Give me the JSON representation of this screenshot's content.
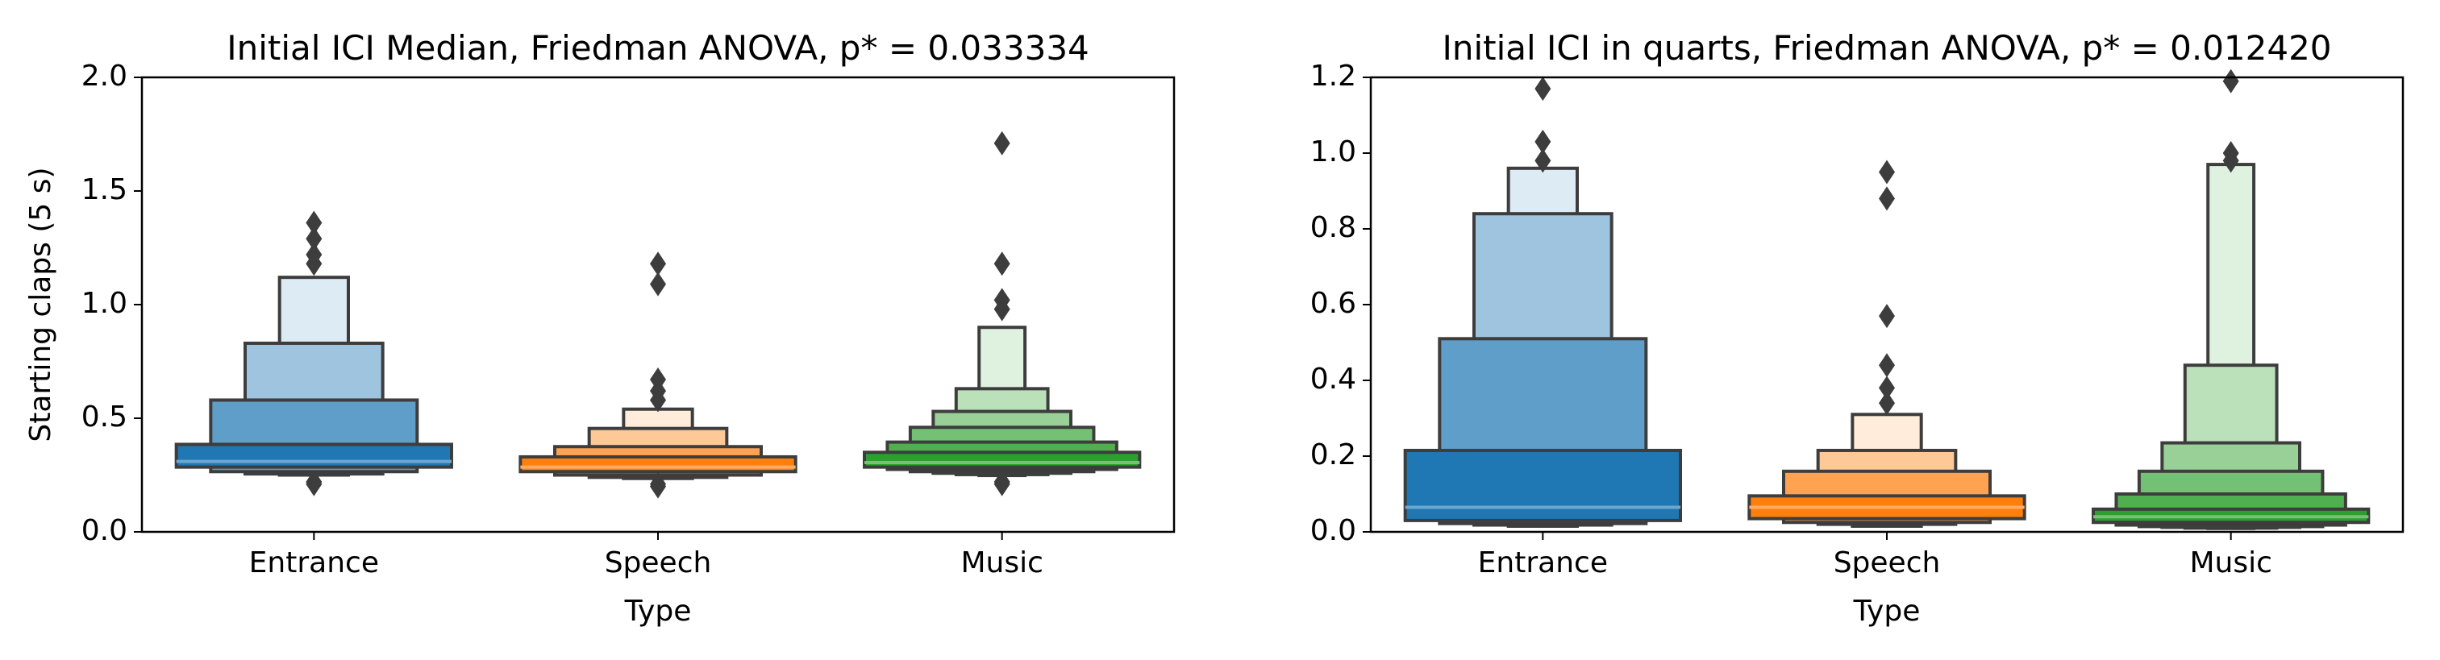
{
  "colors": {
    "entrance": "#1f77b4",
    "speech": "#ff7f0e",
    "music": "#2ca02c",
    "outline": "#3d3d3d"
  },
  "chart_data": [
    {
      "type": "boxen",
      "title": "Initial ICI Median, Friedman ANOVA, p* = 0.033334",
      "xlabel": "Type",
      "ylabel": "Starting claps (5 s)",
      "ylim": [
        0,
        2.0
      ],
      "yticks": [
        "0.0",
        "0.5",
        "1.0",
        "1.5",
        "2.0"
      ],
      "categories": [
        "Entrance",
        "Speech",
        "Music"
      ],
      "series": [
        {
          "category": "Entrance",
          "median": 0.31,
          "boxes": [
            [
              0.285,
              0.385
            ],
            [
              0.265,
              0.58
            ],
            [
              0.255,
              0.83
            ],
            [
              0.25,
              1.12
            ]
          ],
          "outliers": [
            1.36,
            1.29,
            1.22,
            1.18,
            0.22,
            0.21
          ]
        },
        {
          "category": "Speech",
          "median": 0.285,
          "boxes": [
            [
              0.265,
              0.33
            ],
            [
              0.25,
              0.375
            ],
            [
              0.24,
              0.455
            ],
            [
              0.235,
              0.54
            ]
          ],
          "outliers": [
            1.18,
            1.09,
            0.67,
            0.62,
            0.58,
            0.21,
            0.2
          ]
        },
        {
          "category": "Music",
          "median": 0.305,
          "boxes": [
            [
              0.285,
              0.35
            ],
            [
              0.275,
              0.395
            ],
            [
              0.265,
              0.46
            ],
            [
              0.258,
              0.53
            ],
            [
              0.252,
              0.63
            ],
            [
              0.248,
              0.9
            ]
          ],
          "outliers": [
            1.71,
            1.18,
            1.02,
            0.98,
            0.22,
            0.21
          ]
        }
      ]
    },
    {
      "type": "boxen",
      "title": "Initial ICI in quarts, Friedman ANOVA, p* = 0.012420",
      "xlabel": "Type",
      "ylabel": "",
      "ylim": [
        0,
        1.2
      ],
      "yticks": [
        "0.0",
        "0.2",
        "0.4",
        "0.6",
        "0.8",
        "1.0",
        "1.2"
      ],
      "categories": [
        "Entrance",
        "Speech",
        "Music"
      ],
      "series": [
        {
          "category": "Entrance",
          "median": 0.065,
          "boxes": [
            [
              0.03,
              0.215
            ],
            [
              0.022,
              0.51
            ],
            [
              0.018,
              0.84
            ],
            [
              0.015,
              0.96
            ]
          ],
          "outliers": [
            1.17,
            1.03,
            0.98
          ]
        },
        {
          "category": "Speech",
          "median": 0.065,
          "boxes": [
            [
              0.035,
              0.095
            ],
            [
              0.025,
              0.16
            ],
            [
              0.02,
              0.215
            ],
            [
              0.015,
              0.31
            ]
          ],
          "outliers": [
            0.95,
            0.88,
            0.57,
            0.44,
            0.38,
            0.34
          ]
        },
        {
          "category": "Music",
          "median": 0.04,
          "boxes": [
            [
              0.025,
              0.06
            ],
            [
              0.018,
              0.1
            ],
            [
              0.014,
              0.16
            ],
            [
              0.012,
              0.235
            ],
            [
              0.01,
              0.44
            ],
            [
              0.009,
              0.97
            ]
          ],
          "outliers": [
            1.19,
            1.0,
            0.98
          ]
        }
      ]
    }
  ]
}
